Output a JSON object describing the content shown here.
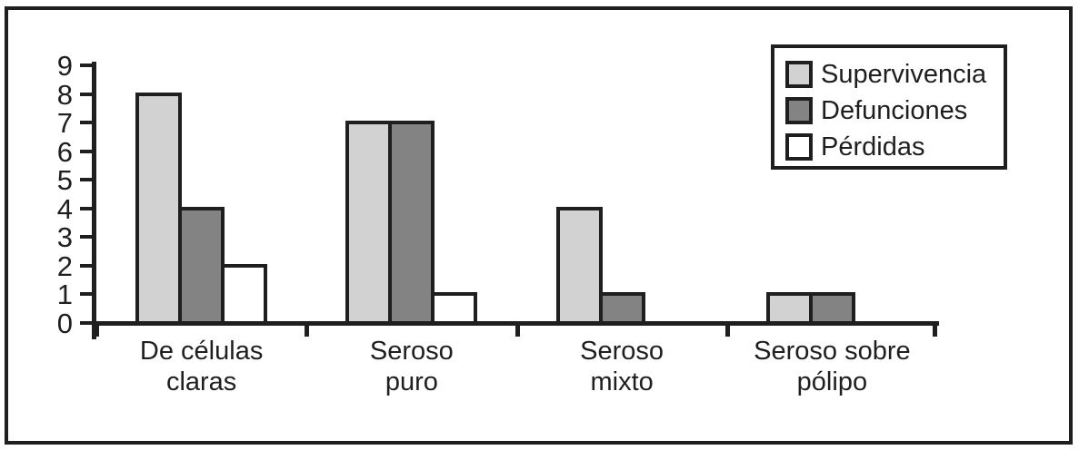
{
  "chart_data": {
    "type": "bar",
    "title": "",
    "xlabel": "",
    "ylabel": "",
    "categories": [
      "De células\nclaras",
      "Seroso\npuro",
      "Seroso\nmixto",
      "Seroso sobre\npólipo"
    ],
    "series": [
      {
        "name": "Supervivencia",
        "color": "#d2d2d2",
        "values": [
          8,
          7,
          4,
          1
        ]
      },
      {
        "name": "Defunciones",
        "color": "#838383",
        "values": [
          4,
          7,
          1,
          1
        ]
      },
      {
        "name": "Pérdidas",
        "color": "#ffffff",
        "values": [
          2,
          1,
          0,
          0
        ]
      }
    ],
    "ylim": [
      0,
      9
    ],
    "yticks": [
      0,
      1,
      2,
      3,
      4,
      5,
      6,
      7,
      8,
      9
    ],
    "legend_position": "top-right",
    "grid": false,
    "axis_color": "#1f1f1f",
    "bar_outline_color": "#1f1f1f",
    "background_color": "#ffffff"
  }
}
